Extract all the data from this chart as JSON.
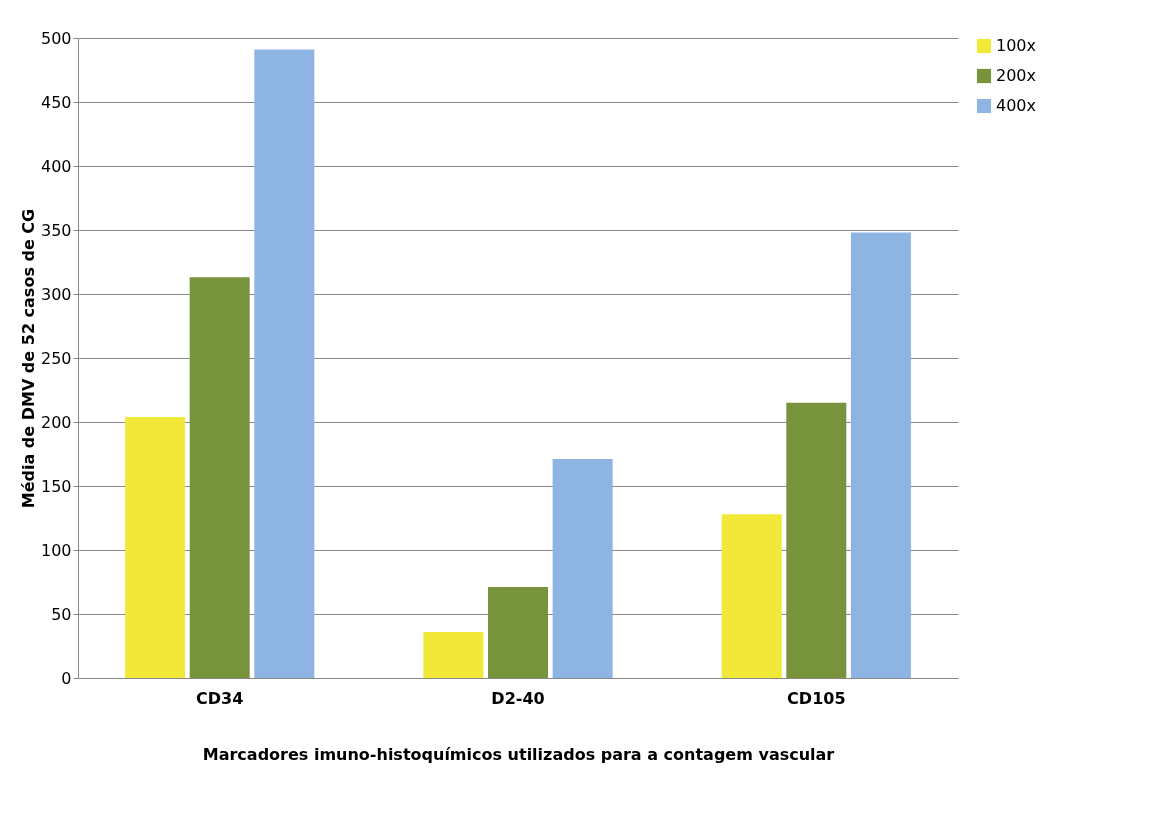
{
  "chart_data": {
    "type": "bar",
    "xlabel": "Marcadores imuno-histoquímicos  utilizados para a contagem vascular",
    "ylabel": "Média de DMV de 52 casos de CG",
    "categories": [
      "CD34",
      "D2-40",
      "CD105"
    ],
    "series": [
      {
        "name": "100x",
        "color": "#f2e838",
        "values": [
          204,
          36,
          128
        ]
      },
      {
        "name": "200x",
        "color": "#77933c",
        "values": [
          313,
          71,
          215
        ]
      },
      {
        "name": "400x",
        "color": "#8eb4e3",
        "values": [
          491,
          171,
          348
        ]
      }
    ],
    "ylim": [
      0,
      500
    ],
    "yticks": [
      0,
      50,
      100,
      150,
      200,
      250,
      300,
      350,
      400,
      450,
      500
    ],
    "grid": "y",
    "legend": "right"
  }
}
